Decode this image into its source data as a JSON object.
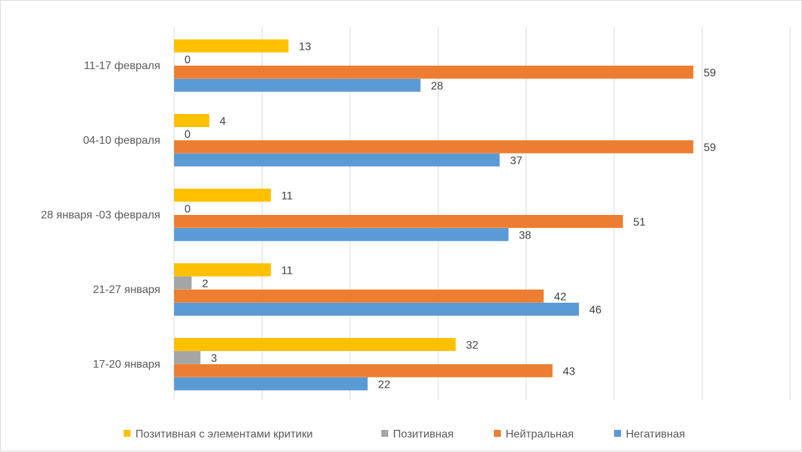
{
  "chart_data": {
    "type": "bar",
    "orientation": "horizontal",
    "categories": [
      "11-17 февраля",
      "04-10 февраля",
      "28 января -03 февраля",
      "21-27 января",
      "17-20 января"
    ],
    "series": [
      {
        "name": "Позитивная с элементами критики",
        "color": "#FFC000",
        "values": [
          13,
          4,
          11,
          11,
          32
        ]
      },
      {
        "name": "Позитивная",
        "color": "#A5A5A5",
        "values": [
          0,
          0,
          0,
          2,
          3
        ]
      },
      {
        "name": "Нейтральная",
        "color": "#ED7D31",
        "values": [
          59,
          59,
          51,
          42,
          43
        ]
      },
      {
        "name": "Негативная",
        "color": "#5B9BD5",
        "values": [
          28,
          37,
          38,
          46,
          22
        ]
      }
    ],
    "xlim": [
      0,
      70
    ],
    "grid": "vertical",
    "data_labels": true,
    "legend_position": "bottom",
    "title": "",
    "xlabel": "",
    "ylabel": ""
  }
}
